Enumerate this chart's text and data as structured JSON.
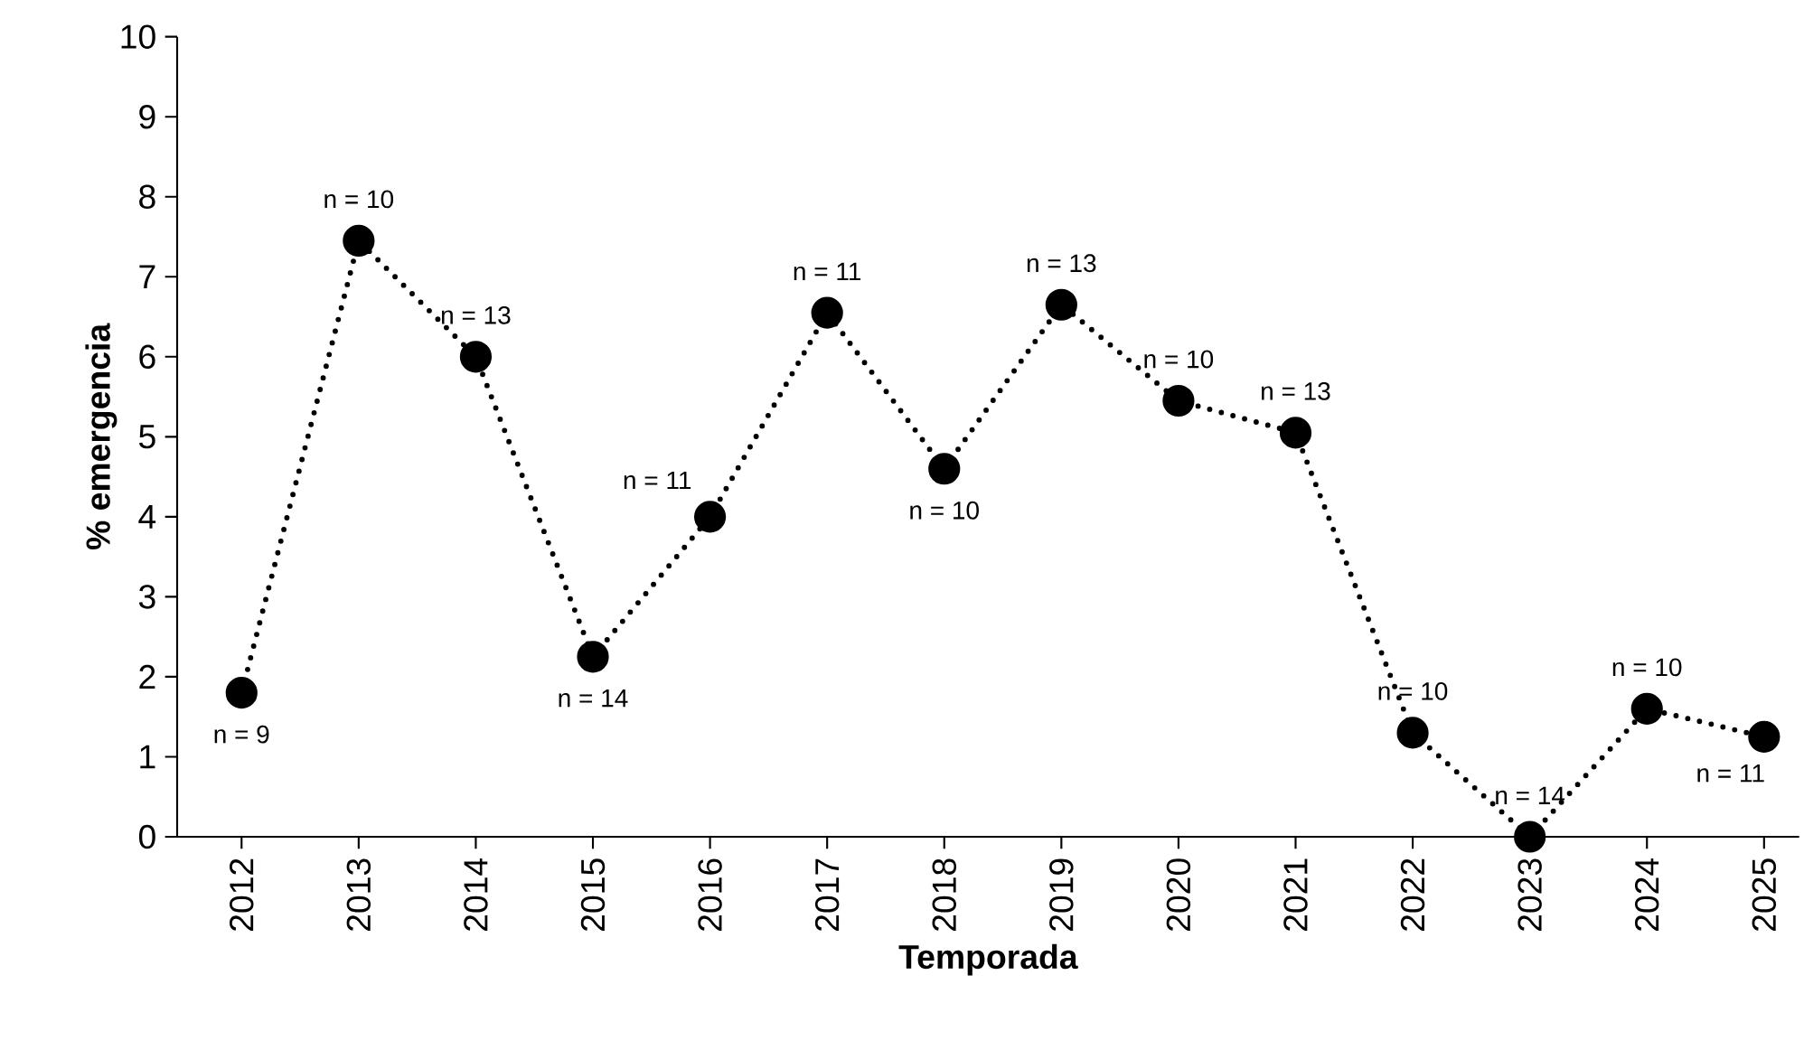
{
  "chart_data": {
    "type": "line",
    "xlabel": "Temporada",
    "ylabel": "% emergencia",
    "categories": [
      "2012",
      "2013",
      "2014",
      "2015",
      "2016",
      "2017",
      "2018",
      "2019",
      "2020",
      "2021",
      "2022",
      "2023",
      "2024",
      "2025"
    ],
    "values": [
      1.8,
      7.45,
      6.0,
      2.25,
      4.0,
      6.55,
      4.6,
      6.65,
      5.45,
      5.05,
      1.3,
      0.0,
      1.6,
      1.25
    ],
    "color": "#000000",
    "marker": "circle",
    "line_style": "dotted",
    "ylim": [
      0,
      10
    ],
    "yticks": [
      0,
      1,
      2,
      3,
      4,
      5,
      6,
      7,
      8,
      9,
      10
    ],
    "annotations": [
      {
        "text": "n = 9",
        "x": "2012",
        "y": 1.8
      },
      {
        "text": "n = 10",
        "x": "2013",
        "y": 7.45
      },
      {
        "text": "n = 13",
        "x": "2014",
        "y": 6.0
      },
      {
        "text": "n = 14",
        "x": "2015",
        "y": 2.25
      },
      {
        "text": "n = 11",
        "x": "2016",
        "y": 4.0
      },
      {
        "text": "n = 11",
        "x": "2017",
        "y": 6.55
      },
      {
        "text": "n = 10",
        "x": "2018",
        "y": 4.6
      },
      {
        "text": "n = 13",
        "x": "2019",
        "y": 6.65
      },
      {
        "text": "n = 10",
        "x": "2020",
        "y": 5.45
      },
      {
        "text": "n = 13",
        "x": "2021",
        "y": 5.05
      },
      {
        "text": "n = 10",
        "x": "2022",
        "y": 1.3
      },
      {
        "text": "n = 14",
        "x": "2023",
        "y": 0.0
      },
      {
        "text": "n = 10",
        "x": "2024",
        "y": 1.6
      },
      {
        "text": "n = 11",
        "x": "2025",
        "y": 1.25
      }
    ]
  }
}
